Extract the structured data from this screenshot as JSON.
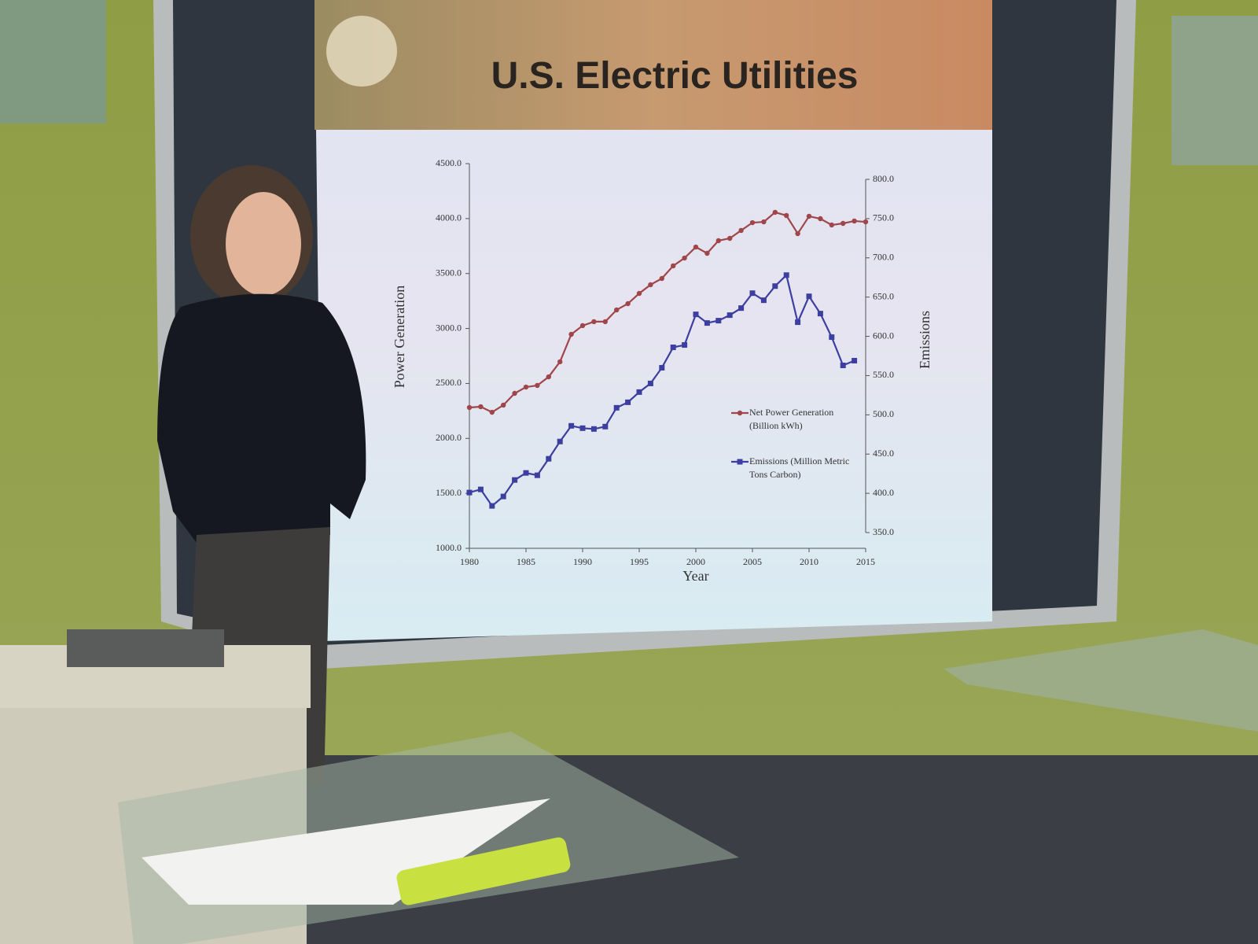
{
  "chart_data": {
    "type": "line",
    "title": "U.S. Electric Utilities",
    "x_label": "Year",
    "y_label": "Power Generation",
    "y2_label": "Emissions",
    "x": [
      1980,
      1981,
      1982,
      1983,
      1984,
      1985,
      1986,
      1987,
      1988,
      1989,
      1990,
      1991,
      1992,
      1993,
      1994,
      1995,
      1996,
      1997,
      1998,
      1999,
      2000,
      2001,
      2002,
      2003,
      2004,
      2005,
      2006,
      2007,
      2008,
      2009,
      2010,
      2011,
      2012,
      2013,
      2014,
      2015
    ],
    "series": [
      {
        "name": "Net Power Generation (Billion kWh)",
        "color": "#a0464a",
        "marker": "circle",
        "axis": "y",
        "values": [
          2281,
          2288,
          2238,
          2303,
          2410,
          2467,
          2482,
          2560,
          2697,
          2947,
          3026,
          3062,
          3062,
          3169,
          3226,
          3319,
          3398,
          3455,
          3570,
          3641,
          3741,
          3684,
          3799,
          3820,
          3892,
          3963,
          3970,
          4057,
          4028,
          3863,
          4021,
          3999,
          3942,
          3956,
          3978,
          3970
        ]
      },
      {
        "name": "Emissions (Million Metric Tons Carbon)",
        "color": "#3c3ea0",
        "marker": "square",
        "axis": "y2",
        "values": [
          401,
          405,
          384,
          396,
          417,
          426,
          423,
          444,
          466,
          486,
          483,
          482,
          485,
          509,
          516,
          529,
          540,
          560,
          586,
          589,
          628,
          617,
          620,
          627,
          636,
          655,
          646,
          664,
          678,
          618,
          651,
          629,
          599,
          563,
          569,
          null
        ]
      }
    ],
    "xlim": [
      1980,
      2015
    ],
    "xticks": [
      1980,
      1985,
      1990,
      1995,
      2000,
      2005,
      2010,
      2015
    ],
    "ylim": [
      1000,
      4500
    ],
    "yticks": [
      {
        "value": 1000,
        "label": "1000.0"
      },
      {
        "value": 1500,
        "label": "1500.0"
      },
      {
        "value": 2000,
        "label": "2000.0"
      },
      {
        "value": 2500,
        "label": "2500.0"
      },
      {
        "value": 3000,
        "label": "3000.0"
      },
      {
        "value": 3500,
        "label": "3500.0"
      },
      {
        "value": 4000,
        "label": "4000.0"
      },
      {
        "value": 4500,
        "label": "4500.0"
      }
    ],
    "y2lim": [
      350,
      800
    ],
    "y2ticks": [
      {
        "value": 350,
        "label": "350.0"
      },
      {
        "value": 400,
        "label": "400.0"
      },
      {
        "value": 450,
        "label": "450.0"
      },
      {
        "value": 500,
        "label": "500.0"
      },
      {
        "value": 550,
        "label": "550.0"
      },
      {
        "value": 600,
        "label": "600.0"
      },
      {
        "value": 650,
        "label": "650.0"
      },
      {
        "value": 700,
        "label": "700.0"
      },
      {
        "value": 750,
        "label": "750.0"
      },
      {
        "value": 800,
        "label": "800.0"
      }
    ],
    "grid": false
  }
}
